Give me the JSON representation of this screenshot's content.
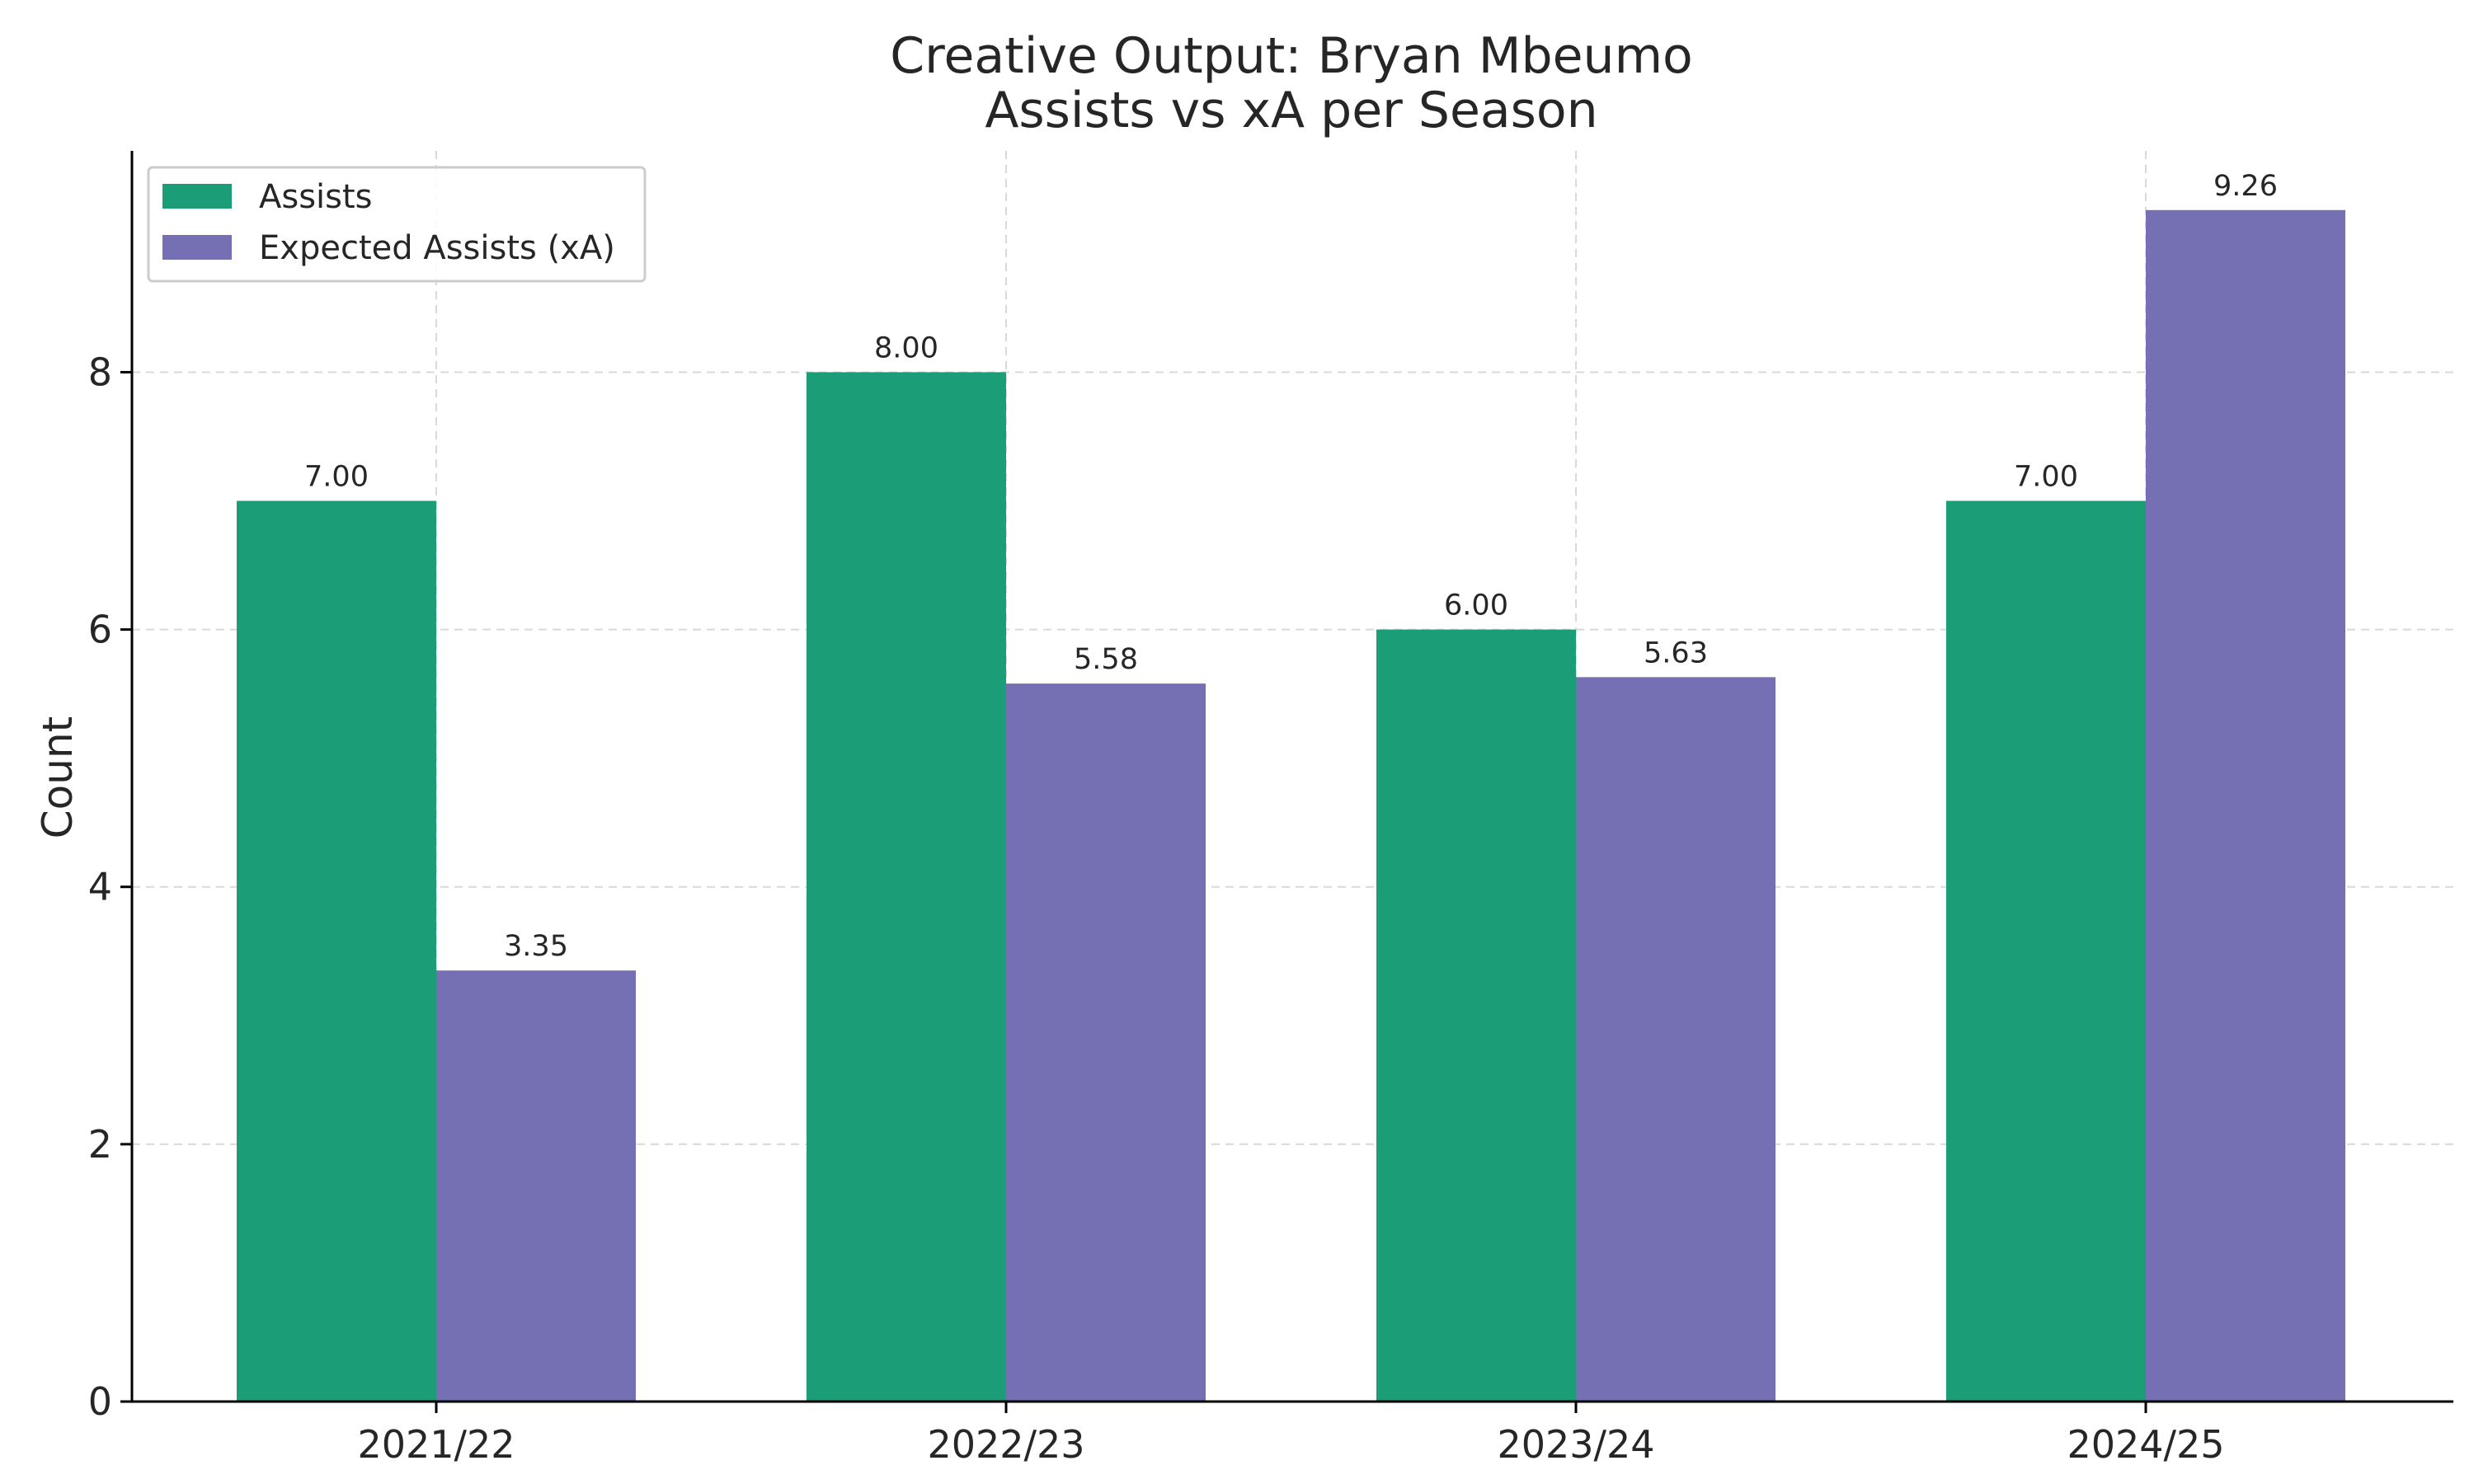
{
  "chart_data": {
    "type": "bar",
    "title": "Creative Output: Bryan Mbeumo",
    "subtitle": "Assists vs xA per Season",
    "xlabel": "",
    "ylabel": "Count",
    "categories": [
      "2021/22",
      "2022/23",
      "2023/24",
      "2024/25"
    ],
    "series": [
      {
        "name": "Assists",
        "color": "#1b9e77",
        "values": [
          7.0,
          8.0,
          6.0,
          7.0
        ],
        "labels": [
          "7.00",
          "8.00",
          "6.00",
          "7.00"
        ]
      },
      {
        "name": "Expected Assists (xA)",
        "color": "#7570b3",
        "values": [
          3.35,
          5.58,
          5.63,
          9.26
        ],
        "labels": [
          "3.35",
          "5.58",
          "5.63",
          "9.26"
        ]
      }
    ],
    "ylim": [
      0,
      9.72
    ],
    "yticks": [
      0,
      2,
      4,
      6,
      8
    ],
    "grid": true,
    "legend_position": "top-left"
  }
}
